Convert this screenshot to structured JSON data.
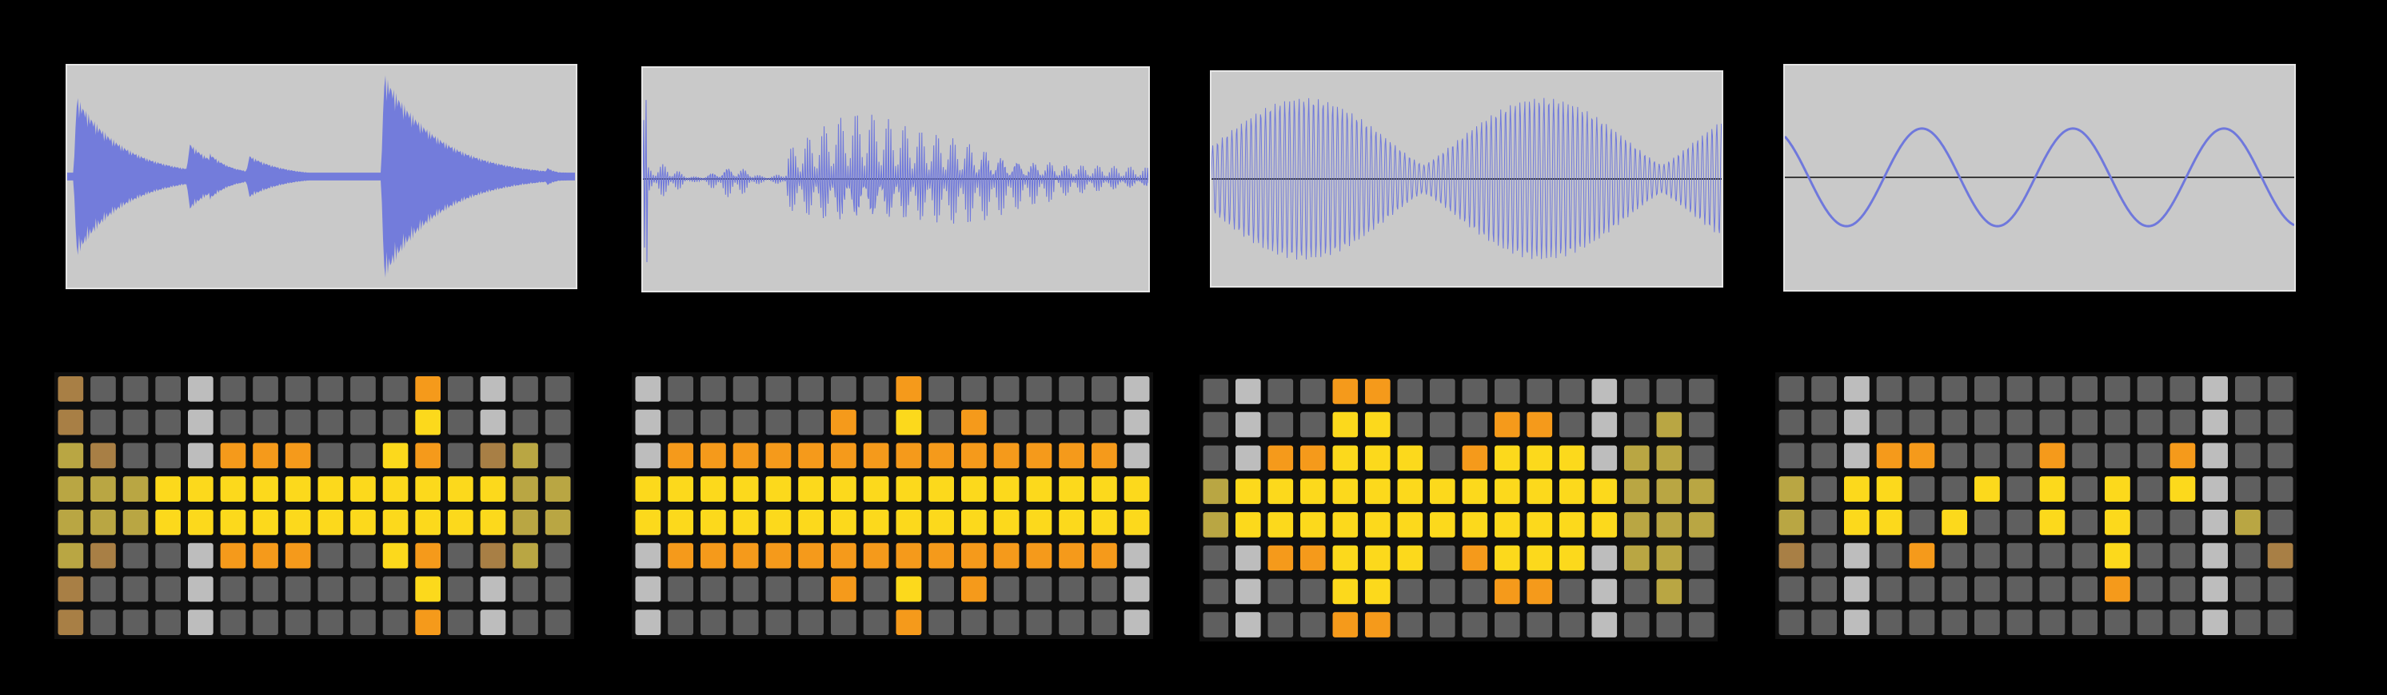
{
  "colors": {
    "background": "#000000",
    "waveform_bg": "#c9c9c9",
    "waveform_line": "#6f78dc",
    "centerline": "#3a3a3a",
    "pad_dark": "#5f5f5f",
    "pad_light": "#bdbdbd",
    "pad_amber": "#b9a643",
    "pad_brown": "#a87f45",
    "pad_orange": "#f59a1b",
    "pad_yellow": "#fcd91c"
  },
  "pad_color_codes": {
    "0": "pad_dark",
    "1": "pad_light",
    "2": "pad_amber",
    "3": "pad_brown",
    "4": "pad_orange",
    "5": "pad_yellow"
  },
  "panels": [
    {
      "waveform": "percussive-hits",
      "grid": [
        "3000100000040100",
        "3000100000050100",
        "2300144400540320",
        "2225555555555522",
        "2225555555555522",
        "2300144400540320",
        "3000100000050100",
        "3000100000040100"
      ]
    },
    {
      "waveform": "speech-like",
      "grid": [
        "1000000040000001",
        "1000004050400001",
        "1444444444444441",
        "5555555555555555",
        "5555555555555555",
        "1444444444444441",
        "1000004050400001",
        "1000000040000001"
      ]
    },
    {
      "waveform": "modulated-tone",
      "grid": [
        "0100440000001000",
        "0100550004401020",
        "0144555045551220",
        "2555555555555222",
        "2555555555555222",
        "0144555045551220",
        "0100550004401020",
        "0100440000001000"
      ]
    },
    {
      "waveform": "sine",
      "grid": [
        "0010000000000100",
        "0010000000000100",
        "0014400040004100",
        "2055005050505100",
        "2055050050500120",
        "3010400000500103",
        "0010000000400100",
        "0010000000000100"
      ]
    }
  ]
}
